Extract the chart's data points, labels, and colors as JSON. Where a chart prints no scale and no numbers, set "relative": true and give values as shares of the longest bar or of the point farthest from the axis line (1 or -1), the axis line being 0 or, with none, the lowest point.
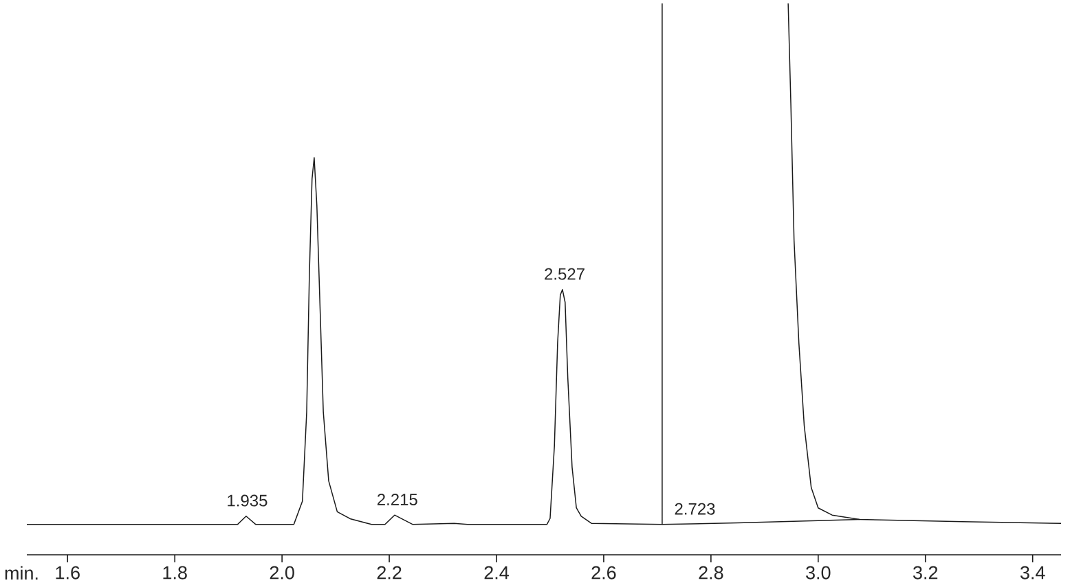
{
  "chart_data": {
    "type": "line",
    "relative": true,
    "xlabel": "min.",
    "xlim": [
      1.524,
      3.453
    ],
    "xticks": [
      1.6,
      1.8,
      {
        "value": 2,
        "label": "2.0"
      },
      2.2,
      2.4,
      2.6,
      2.8,
      {
        "value": 3,
        "label": "3.0"
      },
      3.2,
      3.4
    ],
    "grid": false,
    "marker": "none",
    "line_style": "solid",
    "series": [
      {
        "color": "#1a1a1a",
        "x": [
          1.524,
          1.917,
          1.933,
          1.951,
          2.022,
          2.038,
          2.046,
          2.051,
          2.056,
          2.06,
          2.065,
          2.071,
          2.077,
          2.087,
          2.103,
          2.128,
          2.167,
          2.192,
          2.21,
          2.244,
          2.321,
          2.346,
          2.494,
          2.5,
          2.508,
          2.514,
          2.519,
          2.523,
          2.528,
          2.533,
          2.541,
          2.549,
          2.558,
          2.577,
          2.709,
          2.709,
          2.8,
          2.944,
          2.949,
          2.955,
          2.964,
          2.974,
          2.987,
          3.0,
          3.026,
          3.077,
          3.269,
          3.453
        ],
        "values": [
          0.055,
          0.055,
          0.07,
          0.055,
          0.055,
          0.097,
          0.259,
          0.508,
          0.682,
          0.72,
          0.633,
          0.446,
          0.259,
          0.134,
          0.078,
          0.065,
          0.055,
          0.055,
          0.072,
          0.055,
          0.057,
          0.055,
          0.055,
          0.066,
          0.197,
          0.384,
          0.471,
          0.481,
          0.458,
          0.321,
          0.159,
          0.085,
          0.07,
          0.057,
          0.055,
          1.0,
          null,
          1.0,
          0.819,
          0.57,
          0.384,
          0.234,
          0.122,
          0.085,
          0.072,
          0.064,
          0.06,
          0.057
        ]
      },
      {
        "color": "#1a1a1a",
        "x": [
          2.709,
          2.85,
          3.0,
          3.077
        ],
        "values": [
          0.055,
          0.058,
          0.062,
          0.064
        ]
      }
    ],
    "annotations": [
      {
        "text": "1.935",
        "x": 1.935,
        "y": 0.07
      },
      {
        "text": "2.215",
        "x": 2.215,
        "y": 0.072
      },
      {
        "text": "2.527",
        "x": 2.527,
        "y": 0.481
      },
      {
        "text": "2.723",
        "x": 2.77,
        "y": 0.055
      }
    ]
  }
}
